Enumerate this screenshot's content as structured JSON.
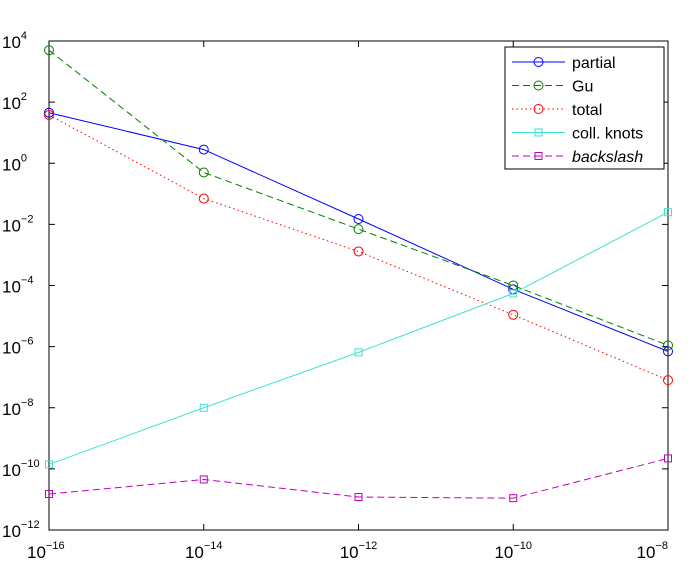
{
  "chart_data": {
    "type": "line",
    "x_scale": "log",
    "y_scale": "log",
    "x": [
      1e-16,
      1e-14,
      1e-12,
      1e-10,
      1e-08
    ],
    "xlim": [
      1e-16,
      1e-08
    ],
    "ylim": [
      1e-12,
      10000.0
    ],
    "x_ticks": [
      {
        "base": "10",
        "exp": "−16",
        "value": 1e-16
      },
      {
        "base": "10",
        "exp": "−14",
        "value": 1e-14
      },
      {
        "base": "10",
        "exp": "−12",
        "value": 1e-12
      },
      {
        "base": "10",
        "exp": "−10",
        "value": 1e-10
      },
      {
        "base": "10",
        "exp": "−8",
        "value": 1e-08
      }
    ],
    "y_ticks": [
      {
        "base": "10",
        "exp": "4",
        "value": 10000.0
      },
      {
        "base": "10",
        "exp": "2",
        "value": 100.0
      },
      {
        "base": "10",
        "exp": "0",
        "value": 1.0
      },
      {
        "base": "10",
        "exp": "−2",
        "value": 0.01
      },
      {
        "base": "10",
        "exp": "−4",
        "value": 0.0001
      },
      {
        "base": "10",
        "exp": "−6",
        "value": 1e-06
      },
      {
        "base": "10",
        "exp": "−8",
        "value": 1e-08
      },
      {
        "base": "10",
        "exp": "−10",
        "value": 1e-10
      },
      {
        "base": "10",
        "exp": "−12",
        "value": 1e-12
      }
    ],
    "grid": false,
    "legend_position": "top-right",
    "series": [
      {
        "name": "partial",
        "color": "#0000ff",
        "dash": "solid",
        "marker": "circle",
        "values": [
          45,
          2.8,
          0.015,
          7.5e-05,
          7e-07
        ]
      },
      {
        "name": "Gu",
        "color": "#008000",
        "dash": "dashed",
        "marker": "circle",
        "values": [
          5000,
          0.5,
          0.007,
          0.0001,
          1.1e-06
        ]
      },
      {
        "name": "total",
        "color": "#ff0000",
        "dash": "dotted",
        "marker": "circle",
        "values": [
          38,
          0.07,
          0.0013,
          1.1e-05,
          8e-08
        ]
      },
      {
        "name": "coll. knots",
        "color": "#40e0d0",
        "dash": "solid",
        "marker": "square",
        "values": [
          1.4e-10,
          1e-08,
          6.5e-07,
          5.5e-05,
          0.025
        ]
      },
      {
        "name": "backslash",
        "color": "#bf00bf",
        "dash": "dashed",
        "marker": "square",
        "italic": true,
        "values": [
          1.5e-11,
          4.5e-11,
          1.2e-11,
          1.1e-11,
          2.2e-10
        ]
      }
    ]
  }
}
